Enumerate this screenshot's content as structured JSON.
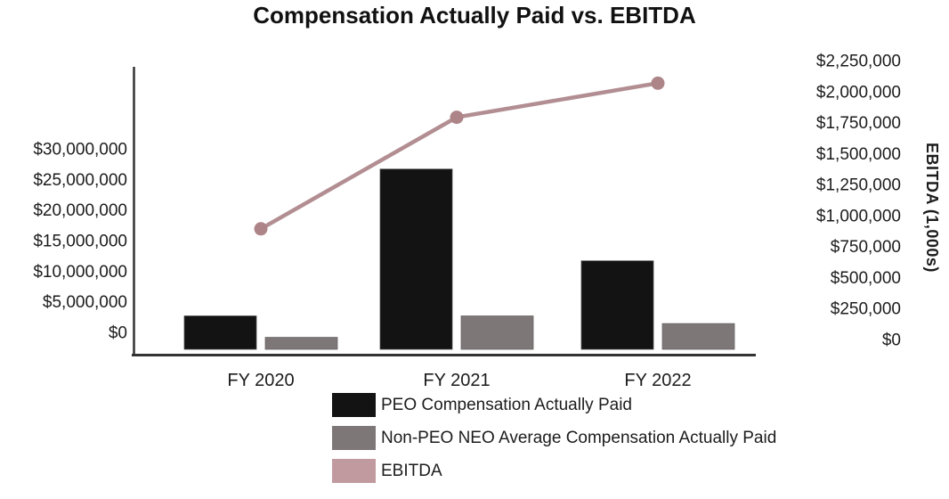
{
  "title": "Compensation Actually Paid vs. EBITDA",
  "colors": {
    "peo_bar": "#131313",
    "peo_bar_border": "#4a4a4a",
    "non_peo_bar": "#7e7778",
    "non_peo_bar_border": "#655f60",
    "ebitda_line": "#b28e92",
    "ebitda_marker": "#ad8488",
    "ebitda_swatch": "#c09a9e",
    "axis_line": "#333333",
    "text": "#1c1c1c"
  },
  "chart_data": {
    "type": "combo bar + line, dual axis",
    "categories": [
      "FY 2020",
      "FY 2021",
      "FY 2022"
    ],
    "series": [
      {
        "name": "PEO Compensation Actually Paid",
        "type": "bar",
        "axis": "left",
        "values": [
          4000000,
          28000000,
          13000000
        ]
      },
      {
        "name": "Non-PEO NEO Average Compensation Actually Paid",
        "type": "bar",
        "axis": "left",
        "values": [
          500000,
          4000000,
          2750000
        ]
      },
      {
        "name": "EBITDA",
        "type": "line",
        "axis": "right",
        "values": [
          900000,
          1800000,
          2075000
        ]
      }
    ],
    "left_axis": {
      "tick_labels": [
        "$30,000,000",
        "$25,000,000",
        "$20,000,000",
        "$15,000,000",
        "$10,000,000",
        "$5,000,000",
        "$0"
      ],
      "tick_values": [
        30000000,
        25000000,
        20000000,
        15000000,
        10000000,
        5000000,
        0
      ],
      "min": 0,
      "max_labeled_tick": 30000000,
      "gridlines": false
    },
    "right_axis": {
      "title": "EBITDA (1,000s)",
      "tick_labels": [
        "$2,250,000",
        "$2,000,000",
        "$1,750,000",
        "$1,500,000",
        "$1,250,000",
        "$1,000,000",
        "$750,000",
        "$500,000",
        "$250,000",
        "$0"
      ],
      "tick_values": [
        2250000,
        2000000,
        1750000,
        1500000,
        1250000,
        1000000,
        750000,
        500000,
        250000,
        0
      ],
      "min": 0,
      "max": 2250000,
      "gridlines": false
    },
    "x_axis": {
      "labels": [
        "FY 2020",
        "FY 2021",
        "FY 2022"
      ]
    },
    "legend": {
      "position": "bottom",
      "entries": [
        "PEO Compensation Actually Paid",
        "Non-PEO NEO Average Compensation Actually Paid",
        "EBITDA"
      ]
    }
  }
}
